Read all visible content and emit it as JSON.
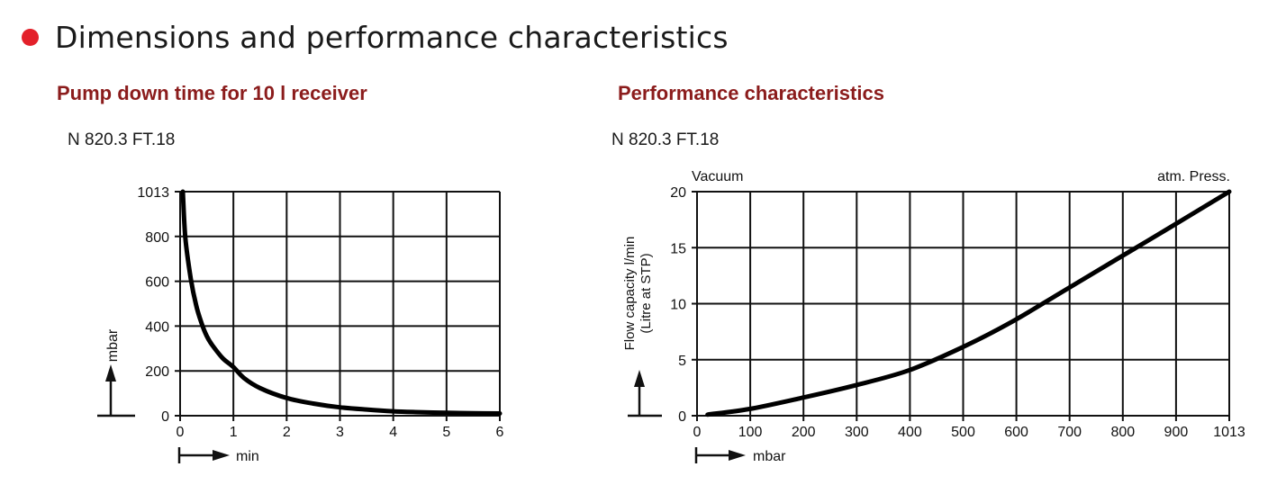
{
  "section": {
    "title": "Dimensions and performance characteristics",
    "bullet_color": "#e3202a"
  },
  "left_panel": {
    "heading": "Pump down time for 10 l receiver",
    "model": "N 820.3 FT.18"
  },
  "right_panel": {
    "heading": "Performance characteristics",
    "model": "N 820.3 FT.18"
  },
  "chart_data": [
    {
      "type": "line",
      "title": "Pump down time for 10 l receiver",
      "xlabel": "min",
      "ylabel": "mbar",
      "xlim": [
        0,
        6
      ],
      "ylim": [
        0,
        1013
      ],
      "x_ticks": [
        "0",
        "1",
        "2",
        "3",
        "4",
        "5",
        "6"
      ],
      "y_ticks": [
        "0",
        "200",
        "400",
        "600",
        "800",
        "1013"
      ],
      "grid": true,
      "series": [
        {
          "x": [
            0.05,
            0.1,
            0.2,
            0.3,
            0.4,
            0.5,
            0.6,
            0.8,
            1.0,
            1.2,
            1.5,
            2.0,
            2.5,
            3.0,
            3.5,
            4.0,
            4.5,
            5.0,
            5.5,
            6.0
          ],
          "y": [
            1013,
            800,
            620,
            500,
            420,
            360,
            320,
            260,
            220,
            170,
            125,
            80,
            55,
            38,
            28,
            20,
            16,
            13,
            11,
            10
          ]
        }
      ]
    },
    {
      "type": "line",
      "title": "Performance characteristics",
      "xlabel": "mbar",
      "ylabel": "Flow capacity l/min (Litre at STP)",
      "ylabel_lines": [
        "Flow capacity l/min",
        "(Litre at STP)"
      ],
      "annotations": [
        "Vacuum",
        "atm. Press."
      ],
      "xlim": [
        0,
        1013
      ],
      "ylim": [
        0,
        20
      ],
      "x_ticks": [
        "0",
        "100",
        "200",
        "300",
        "400",
        "500",
        "600",
        "700",
        "800",
        "900",
        "1013"
      ],
      "y_ticks": [
        "0",
        "5",
        "10",
        "15",
        "20"
      ],
      "grid": true,
      "series": [
        {
          "x": [
            20,
            100,
            200,
            300,
            400,
            500,
            600,
            700,
            800,
            900,
            1013
          ],
          "y": [
            0.1,
            0.6,
            1.6,
            2.7,
            4.0,
            6.0,
            8.4,
            11.2,
            14.0,
            16.8,
            20.0
          ]
        }
      ]
    }
  ]
}
